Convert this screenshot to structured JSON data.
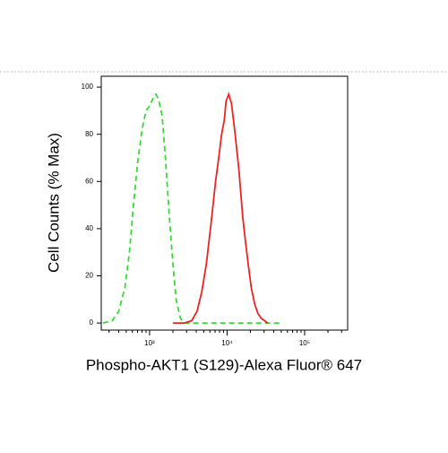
{
  "chart_data": {
    "type": "line",
    "xlabel": "Phospho-AKT1 (S129)-Alexa Fluor® 647",
    "ylabel": "Cell Counts (% Max)",
    "xscale": "log",
    "xlim": [
      238,
      359000
    ],
    "ylim": [
      -3,
      104.6
    ],
    "xticks": [
      {
        "value": 1000,
        "label": "10³"
      },
      {
        "value": 10000,
        "label": "10⁴"
      },
      {
        "value": 100000,
        "label": "10⁵"
      }
    ],
    "yticks": [
      0,
      20,
      40,
      60,
      80,
      100
    ],
    "series": [
      {
        "color": "#33dd33",
        "dashed": true,
        "x": [
          250,
          330,
          400,
          480,
          550,
          620,
          700,
          800,
          900,
          1000,
          1100,
          1200,
          1300,
          1450,
          1600,
          1800,
          2000,
          2200,
          2500,
          2800,
          10000,
          50000
        ],
        "values": [
          0,
          1,
          5,
          15,
          30,
          50,
          68,
          82,
          90,
          92,
          95,
          97,
          95,
          88,
          70,
          45,
          25,
          10,
          2,
          0,
          0,
          0
        ]
      },
      {
        "color": "#ee2222",
        "dashed": false,
        "x": [
          2000,
          2800,
          3500,
          4100,
          4700,
          5400,
          6200,
          7100,
          7800,
          8500,
          9200,
          9700,
          10500,
          11400,
          12700,
          14200,
          15900,
          17200,
          18700,
          20500,
          22700,
          25000,
          27600,
          33500
        ],
        "values": [
          0,
          0,
          1,
          5,
          13,
          25,
          42,
          60,
          70,
          80,
          86,
          94,
          97,
          93,
          80,
          65,
          45,
          35,
          25,
          15,
          8,
          4,
          2,
          0
        ]
      }
    ]
  }
}
